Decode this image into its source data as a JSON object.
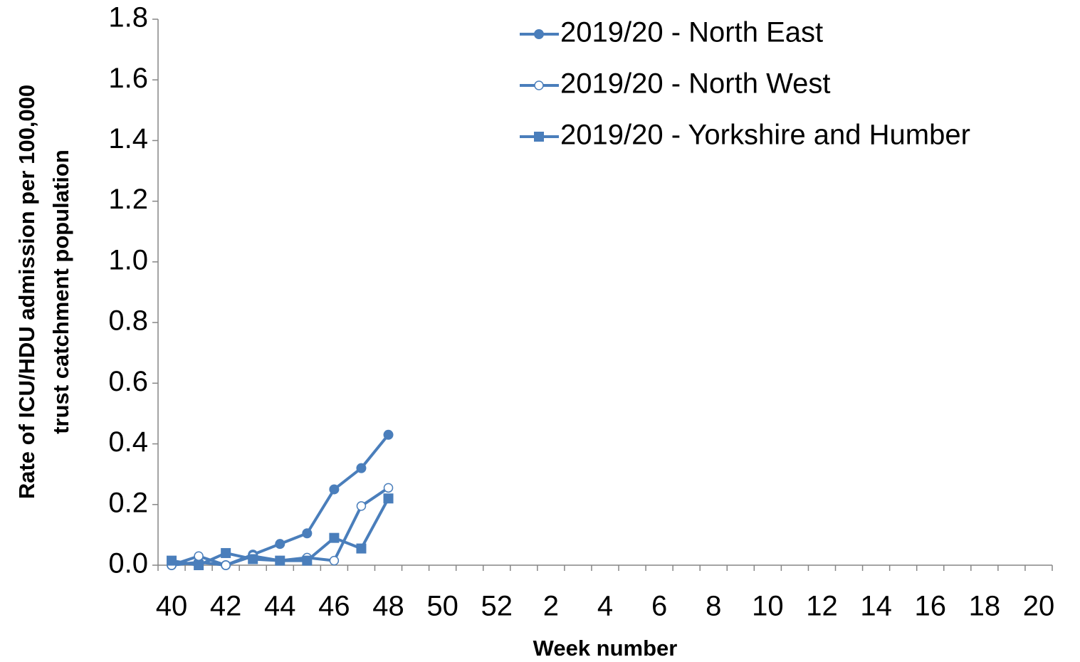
{
  "chart_data": {
    "type": "line",
    "xlabel": "Week number",
    "ylabel": [
      "Rate of ICU/HDU admission per 100,000",
      "trust catchment population"
    ],
    "categories": [
      40,
      null,
      42,
      null,
      44,
      null,
      46,
      null,
      48,
      null,
      50,
      null,
      52,
      null,
      2,
      null,
      4,
      null,
      6,
      null,
      8,
      null,
      10,
      null,
      12,
      null,
      14,
      null,
      16,
      null,
      18,
      null,
      20
    ],
    "series": [
      {
        "name": "2019/20 - North East",
        "color": "#4a7ebb",
        "marker": "circle",
        "values": [
          0.0,
          0.01,
          0.0,
          0.035,
          0.07,
          0.105,
          0.25,
          0.32,
          0.43,
          null,
          null,
          null,
          null,
          null,
          null,
          null,
          null,
          null,
          null,
          null,
          null,
          null,
          null,
          null,
          null,
          null,
          null,
          null,
          null,
          null,
          null,
          null,
          null
        ]
      },
      {
        "name": "2019/20 - North West",
        "color": "#4a7ebb",
        "marker": "open-circle",
        "values": [
          0.0,
          0.03,
          0.0,
          0.03,
          0.015,
          0.025,
          0.015,
          0.195,
          0.255,
          null,
          null,
          null,
          null,
          null,
          null,
          null,
          null,
          null,
          null,
          null,
          null,
          null,
          null,
          null,
          null,
          null,
          null,
          null,
          null,
          null,
          null,
          null,
          null
        ]
      },
      {
        "name": "2019/20 - Yorkshire and Humber",
        "color": "#4a7ebb",
        "marker": "square",
        "values": [
          0.015,
          0.0,
          0.04,
          0.02,
          0.015,
          0.015,
          0.09,
          0.055,
          0.22,
          null,
          null,
          null,
          null,
          null,
          null,
          null,
          null,
          null,
          null,
          null,
          null,
          null,
          null,
          null,
          null,
          null,
          null,
          null,
          null,
          null,
          null,
          null,
          null
        ]
      }
    ],
    "ylim": [
      0,
      1.8
    ],
    "yticks": [
      {
        "value": 0,
        "label": "0.0"
      },
      0.2,
      0.4,
      0.6,
      0.8,
      {
        "value": 1,
        "label": "1.0"
      },
      1.2,
      1.4,
      1.6,
      1.8
    ],
    "grid": false,
    "legend": "top-right"
  }
}
